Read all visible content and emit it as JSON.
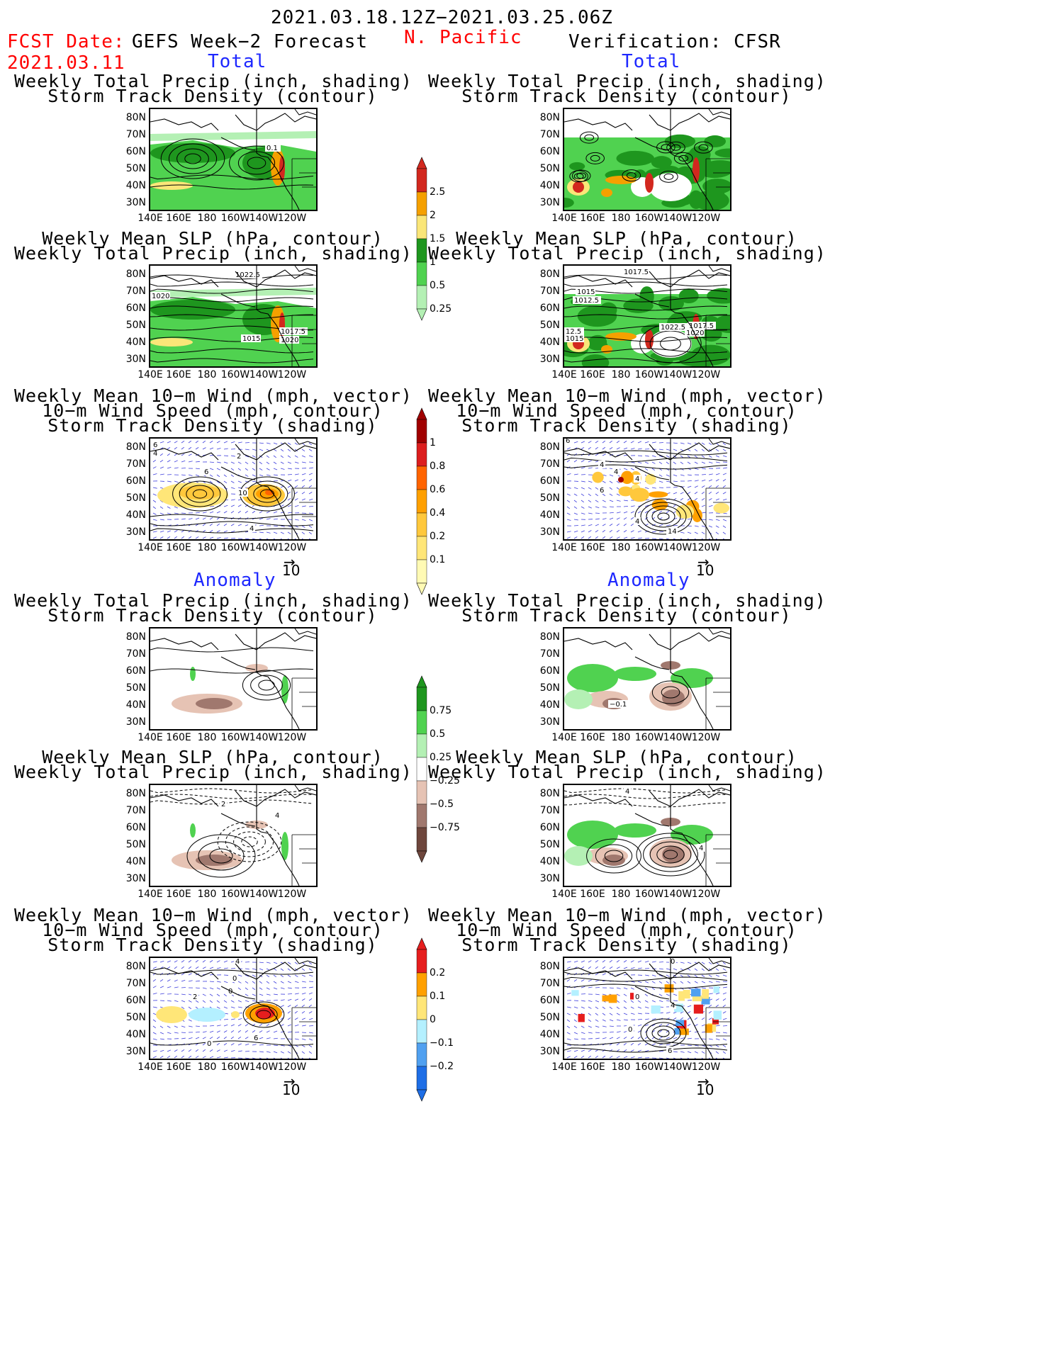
{
  "header": {
    "date_range": "2021.03.18.12Z−2021.03.25.06Z",
    "fcst_date_label": "FCST Date:",
    "fcst_date_value": "2021.03.11",
    "left_title": "GEFS Week−2 Forecast",
    "region": "N. Pacific",
    "right_title": "Verification: CFSR"
  },
  "sections": {
    "total": "Total",
    "anomaly": "Anomaly"
  },
  "panel_titles": {
    "precip_storm": [
      "Weekly Total Precip (inch, shading)",
      "Storm Track Density (contour)"
    ],
    "slp_precip": [
      "Weekly Mean SLP (hPa, contour)",
      "Weekly Total Precip (inch, shading)"
    ],
    "wind_storm": [
      "Weekly Mean 10−m Wind (mph, vector)",
      "10−m Wind Speed (mph, contour)",
      "Storm Track Density (shading)"
    ]
  },
  "axes": {
    "lat_ticks": [
      "80N",
      "70N",
      "60N",
      "50N",
      "40N",
      "30N"
    ],
    "lon_ticks": [
      "140E",
      "160E",
      "180",
      "160W",
      "140W",
      "120W"
    ]
  },
  "vector_ref": "10",
  "colorbars": {
    "total_precip": {
      "labels": [
        "2.5",
        "2",
        "1.5",
        "1",
        "0.5",
        "0.25"
      ],
      "colors": [
        "#d2281e",
        "#f5a000",
        "#fae678",
        "#1e961e",
        "#50d250",
        "#b4f0b4"
      ]
    },
    "total_storm": {
      "labels": [
        "1",
        "0.8",
        "0.6",
        "0.4",
        "0.2",
        "0.1"
      ],
      "colors": [
        "#a00000",
        "#dc1e1e",
        "#ff6400",
        "#ffa000",
        "#ffc83c",
        "#ffe678",
        "#fffab4"
      ]
    },
    "anom_precip": {
      "labels": [
        "0.75",
        "0.5",
        "0.25",
        "−0.25",
        "−0.5",
        "−0.75"
      ],
      "colors": [
        "#1e961e",
        "#50d250",
        "#b4f0b4",
        "#ffffff",
        "#e6c3b4",
        "#a0786e",
        "#6e463c"
      ]
    },
    "anom_storm": {
      "labels": [
        "0.2",
        "0.1",
        "0",
        "−0.1",
        "−0.2"
      ],
      "colors": [
        "#e61e1e",
        "#ffa000",
        "#ffe678",
        "#b4f0ff",
        "#50a0f0",
        "#1e6ee6"
      ]
    }
  },
  "contour_labels": {
    "fcst_precip": [
      "0.1"
    ],
    "fcst_slp": [
      "1022.5",
      "1020",
      "1015",
      "1017.5",
      "1020"
    ],
    "obs_slp": [
      "1017.5",
      "1015",
      "1012.5",
      "1022.5",
      "1017.5",
      "1020",
      "12.5",
      "1015"
    ],
    "fcst_wind": [
      "6",
      "4",
      "2",
      "10",
      "6",
      "4"
    ],
    "obs_wind": [
      "6",
      "4",
      "4",
      "4",
      "6",
      "14",
      "4"
    ],
    "obs_anom_precip": [
      "−0.1"
    ],
    "fcst_anom_slp": [
      "2",
      "4"
    ],
    "obs_anom_slp": [
      "4",
      "4"
    ],
    "fcst_anom_wind": [
      "4",
      "0",
      "2",
      "0",
      "6",
      "0"
    ],
    "obs_anom_wind": [
      "0",
      "0",
      "0",
      "4",
      "6"
    ]
  }
}
